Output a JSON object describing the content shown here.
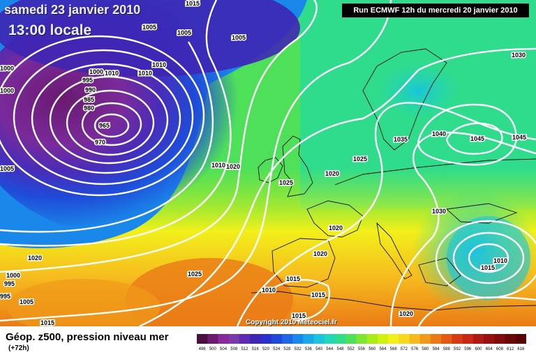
{
  "header": {
    "date": "samedi 23 janvier 2010",
    "time": "13:00 locale",
    "run": "Run ECMWF 12h du mercredi 20 janvier 2010"
  },
  "footer": {
    "title": "Géop. z500, pression niveau mer",
    "lead": "(+72h)",
    "copyright": "Copyright 2010 Meteociel.fr"
  },
  "legend": {
    "labels": [
      "496",
      "500",
      "504",
      "508",
      "512",
      "516",
      "520",
      "524",
      "528",
      "532",
      "536",
      "540",
      "544",
      "548",
      "552",
      "556",
      "560",
      "564",
      "568",
      "572",
      "576",
      "580",
      "584",
      "588",
      "592",
      "596",
      "600",
      "604",
      "608",
      "612",
      "616"
    ],
    "colors": [
      "#4a1040",
      "#6b1a6e",
      "#8a2a9a",
      "#7a3aa8",
      "#5e2cb0",
      "#3e26b4",
      "#2a30c8",
      "#1f4ad8",
      "#1e66e4",
      "#1a88ea",
      "#18a8e6",
      "#1ac4dc",
      "#22d6b8",
      "#2edc8c",
      "#4fe05a",
      "#7ee632",
      "#a8ec1a",
      "#d0f010",
      "#f2f01a",
      "#f8d81e",
      "#f6ba1e",
      "#f09a1a",
      "#ea7a16",
      "#e25a14",
      "#d63c14",
      "#c82814",
      "#b01812",
      "#981010",
      "#800c0c",
      "#6a0808",
      "#560404"
    ]
  },
  "pressure_labels": [
    "1015",
    "1005",
    "1005",
    "1005",
    "1010",
    "1010",
    "1010",
    "995",
    "990",
    "985",
    "980",
    "965",
    "970",
    "1000",
    "1000",
    "1000",
    "1005",
    "1020",
    "1010",
    "1025",
    "1020",
    "1025",
    "1035",
    "1040",
    "1045",
    "1045",
    "1030",
    "1030",
    "1020",
    "1020",
    "1010",
    "1015",
    "1015",
    "1025",
    "1010",
    "1000",
    "995",
    "995",
    "1005",
    "1015",
    "1015",
    "1015",
    "1020"
  ]
}
